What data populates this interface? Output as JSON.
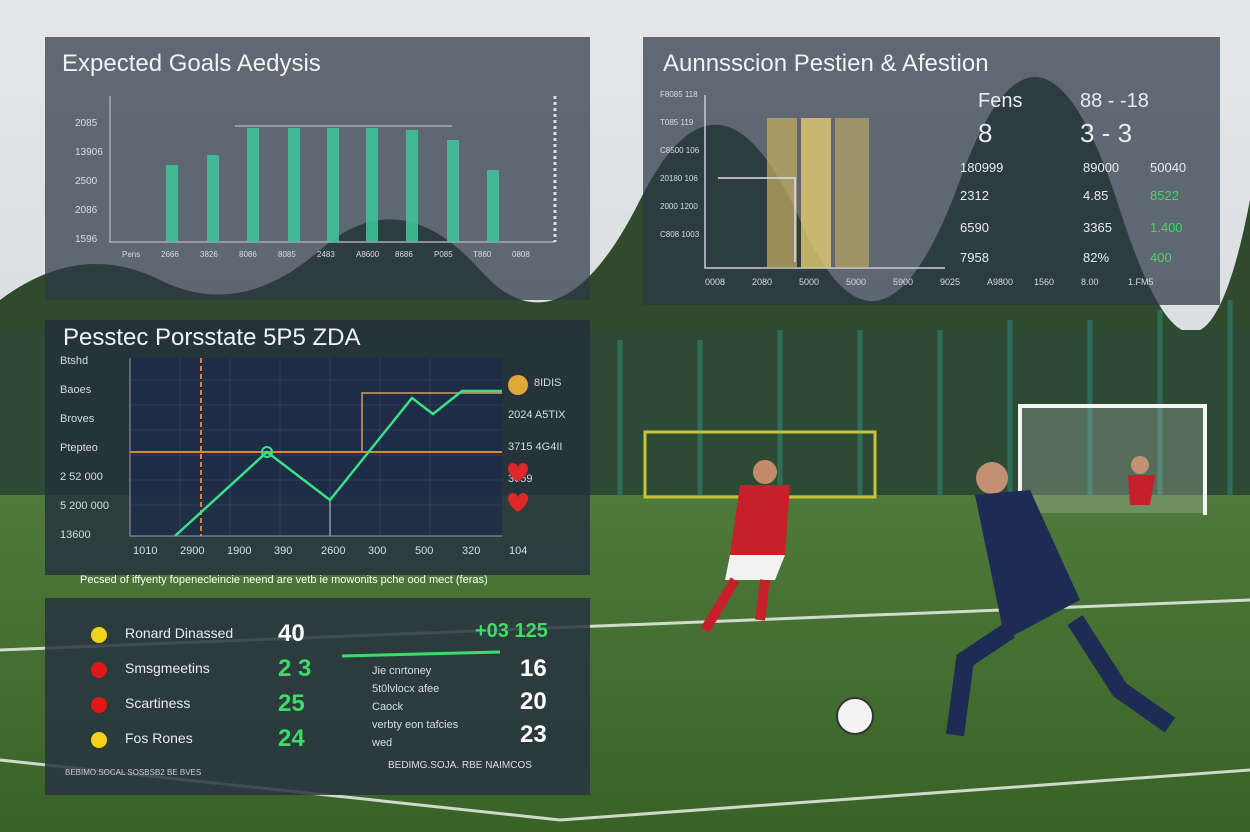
{
  "xg_panel": {
    "title": "Expected Goals Aedysis",
    "y_labels": [
      "2085",
      "13906",
      "2500",
      "2086",
      "1596"
    ],
    "x_labels": [
      "Pens",
      "2666",
      "3826",
      "8086",
      "8085",
      "2483",
      "A8600",
      "8686",
      "P085",
      "T860",
      "0808"
    ]
  },
  "possession_panel": {
    "title": "Aunnsscion Pestien & Afestion",
    "y_labels": [
      "F8085 118",
      "T085 119",
      "C8500 106",
      "20180 106",
      "2000 1200",
      "C808 1003"
    ],
    "x_labels": [
      "0008",
      "2080",
      "5000",
      "5000",
      "5900",
      "9025",
      "A9800",
      "1560",
      "8.00",
      "1.FM5"
    ],
    "rows": [
      [
        "Fens",
        "",
        "88 - -18"
      ],
      [
        "8",
        "",
        "3 - 3"
      ],
      [
        "180999",
        "89000",
        "50040"
      ],
      [
        "2312",
        "4.85",
        "8522"
      ],
      [
        "6590",
        "3365",
        "1.400"
      ],
      [
        "7958",
        "82%",
        "400"
      ]
    ]
  },
  "performance_panel": {
    "title": "Pesstec Porsstate 5P5 ZDA",
    "left_labels": [
      "Btshd",
      "Baoes",
      "Broves",
      "Ptepteo",
      "2 52 000",
      "5 200 000",
      "13600"
    ],
    "right_labels": [
      "8IDIS",
      "2024 A5TIX",
      "3715 4G4II",
      "3059"
    ],
    "x_labels": [
      "1010",
      "2900",
      "1900",
      "390",
      "2600",
      "300",
      "500",
      "320",
      "104"
    ],
    "caption": "Pecsed of iffyenty fopenecleincie neend are vetb ie mowonits pche ood mect (feras)"
  },
  "players_panel": {
    "players": [
      {
        "name": "Ronard Dinassed",
        "value": "40",
        "color": "#f2d21a"
      },
      {
        "name": "Smsgmeetins",
        "value": "2 3",
        "color": "#e01818"
      },
      {
        "name": "Scartiness",
        "value": "25",
        "color": "#e01818"
      },
      {
        "name": "Fos Rones",
        "value": "24",
        "color": "#f2d21a"
      }
    ],
    "highlight": "+03 125",
    "notes": [
      "Jie cnrtoney",
      "5t0lvlocx afee",
      "Caock",
      "verbty eon tafcies",
      "wed"
    ],
    "note_values": [
      "16",
      "20",
      "23"
    ],
    "footer_left": "BEBIMO.SOCAL SOSBSB2 BE BVES",
    "footer_right": "BEDIMG.SOJA. RBE NAIMCOS"
  }
}
